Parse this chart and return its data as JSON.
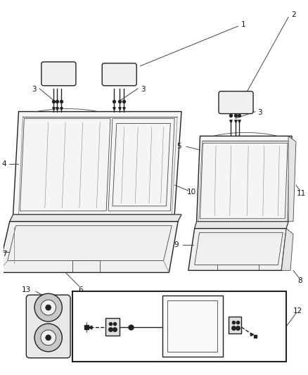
{
  "bg_color": "#ffffff",
  "lc": "#444444",
  "lc_dark": "#222222",
  "lc_light": "#888888",
  "lw_main": 1.0,
  "lw_thin": 0.6,
  "lw_thick": 1.4,
  "figsize": [
    4.38,
    5.33
  ],
  "dpi": 100,
  "label_fs": 7.5
}
